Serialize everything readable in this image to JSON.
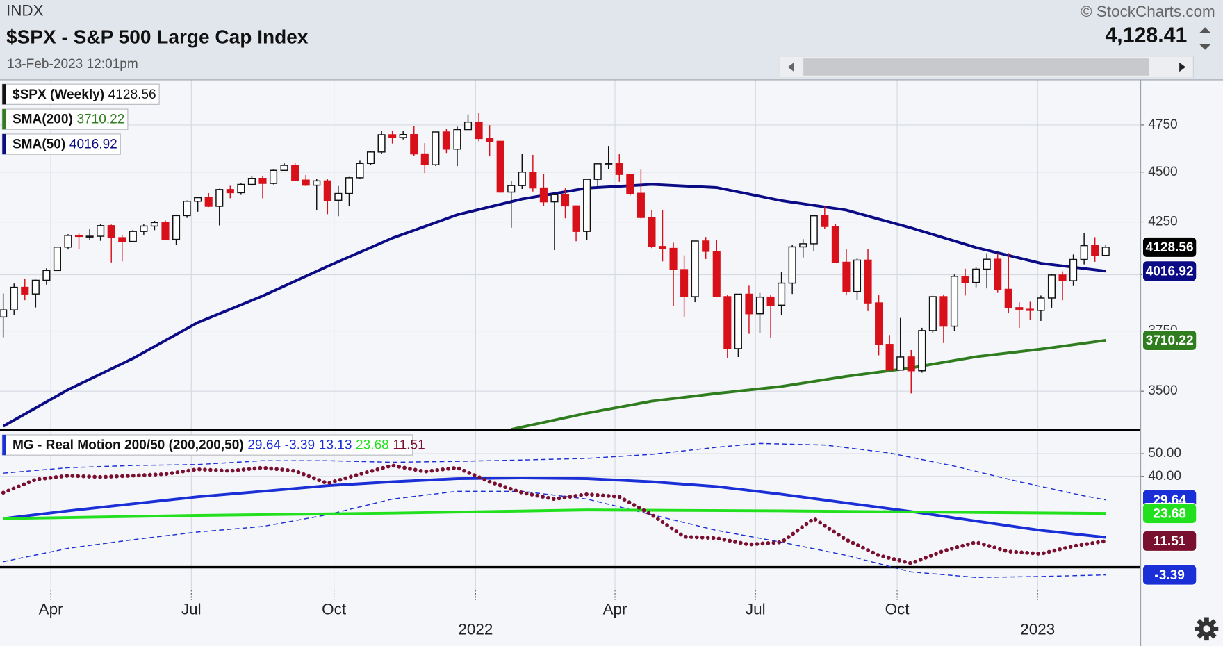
{
  "header": {
    "exchange": "INDX",
    "title": "$SPX - S&P 500 Large Cap Index",
    "timestamp": "13-Feb-2023 12:01pm",
    "copyright": "© StockCharts.com",
    "last_price": "4,128.41"
  },
  "chart_data": [
    {
      "type": "candlestick",
      "name": "$SPX (Weekly)",
      "open": [
        3811,
        3842,
        3943,
        3913,
        3975,
        4020,
        4129,
        4185,
        4181,
        4181,
        4232,
        4174,
        4156,
        4204,
        4230,
        4247,
        4166,
        4281,
        4352,
        4370,
        4327,
        4411,
        4395,
        4437,
        4468,
        4442,
        4509,
        4535,
        4459,
        4433,
        4455,
        4357,
        4391,
        4471,
        4545,
        4605,
        4697,
        4682,
        4698,
        4595,
        4538,
        4712,
        4620,
        4725,
        4766,
        4677,
        4662,
        4398,
        4431,
        4500,
        4419,
        4349,
        4385,
        4329,
        4204,
        4463,
        4543,
        4546,
        4488,
        4392,
        4272,
        4132,
        4123,
        4024,
        3901,
        4158,
        4109,
        3901,
        3675,
        3912,
        3825,
        3899,
        3863,
        3962,
        4130,
        4145,
        4280,
        4228,
        4058,
        3924,
        4068,
        3873,
        3693,
        3586,
        3640,
        3583,
        3752,
        3901,
        3771,
        3993,
        3965,
        4026,
        4072,
        3934,
        3852,
        3845,
        3840,
        3895,
        3999,
        3973,
        4071,
        4136,
        4090
      ],
      "high": [
        3915,
        3960,
        3983,
        3978,
        4030,
        4130,
        4191,
        4194,
        4218,
        4238,
        4237,
        4186,
        4212,
        4238,
        4255,
        4257,
        4286,
        4356,
        4372,
        4393,
        4415,
        4430,
        4442,
        4480,
        4478,
        4513,
        4545,
        4549,
        4485,
        4466,
        4465,
        4429,
        4475,
        4559,
        4608,
        4718,
        4719,
        4717,
        4744,
        4652,
        4713,
        4731,
        4741,
        4808,
        4818,
        4749,
        4664,
        4453,
        4595,
        4590,
        4490,
        4394,
        4417,
        4331,
        4465,
        4546,
        4637,
        4593,
        4492,
        4513,
        4308,
        4307,
        4150,
        4090,
        4158,
        4177,
        4164,
        3910,
        3913,
        3950,
        3918,
        3910,
        4012,
        4140,
        4167,
        4280,
        4325,
        4240,
        4119,
        4076,
        4119,
        3907,
        3733,
        3807,
        3669,
        3764,
        3905,
        3911,
        4001,
        4028,
        4034,
        4100,
        4100,
        4101,
        3876,
        3878,
        3906,
        4003,
        4016,
        4094,
        4195,
        4176,
        4141
      ],
      "low": [
        3723,
        3818,
        3885,
        3853,
        3955,
        4020,
        4118,
        4118,
        4164,
        4159,
        4057,
        4062,
        4152,
        4188,
        4210,
        4165,
        4140,
        4270,
        4300,
        4323,
        4233,
        4367,
        4384,
        4430,
        4367,
        4437,
        4508,
        4455,
        4428,
        4306,
        4288,
        4278,
        4329,
        4465,
        4537,
        4595,
        4650,
        4672,
        4585,
        4495,
        4532,
        4600,
        4531,
        4725,
        4662,
        4582,
        4395,
        4222,
        4414,
        4401,
        4327,
        4115,
        4268,
        4157,
        4162,
        4425,
        4517,
        4450,
        4381,
        4267,
        4124,
        4062,
        3859,
        3810,
        3876,
        4073,
        3900,
        3637,
        3640,
        3738,
        3742,
        3721,
        3818,
        3913,
        4080,
        4112,
        4218,
        4057,
        3907,
        3886,
        3837,
        3647,
        3585,
        3584,
        3491,
        3575,
        3743,
        3699,
        3750,
        3906,
        3943,
        3938,
        3918,
        3827,
        3764,
        3800,
        3794,
        3852,
        3885,
        3949,
        4048,
        4060,
        4090
      ],
      "close": [
        3842,
        3943,
        3913,
        3975,
        4020,
        4129,
        4185,
        4180,
        4181,
        4232,
        4174,
        4156,
        4204,
        4230,
        4247,
        4166,
        4281,
        4352,
        4370,
        4327,
        4411,
        4395,
        4437,
        4468,
        4442,
        4509,
        4535,
        4459,
        4433,
        4455,
        4357,
        4391,
        4471,
        4545,
        4605,
        4697,
        4682,
        4698,
        4595,
        4538,
        4712,
        4620,
        4725,
        4766,
        4677,
        4662,
        4398,
        4431,
        4500,
        4419,
        4349,
        4385,
        4329,
        4204,
        4463,
        4543,
        4546,
        4488,
        4392,
        4272,
        4132,
        4123,
        4024,
        3901,
        4158,
        4109,
        3901,
        3675,
        3912,
        3825,
        3899,
        3863,
        3962,
        4130,
        4145,
        4280,
        4228,
        4058,
        3924,
        4068,
        3873,
        3693,
        3586,
        3640,
        3583,
        3752,
        3901,
        3771,
        3993,
        3965,
        4026,
        4072,
        3934,
        3852,
        3845,
        3840,
        3895,
        3999,
        3973,
        4071,
        4136,
        4090,
        4128.56
      ],
      "up_color": "#111111",
      "down_color": "#d8101a",
      "series": [
        {
          "name": "SMA(200)",
          "color": "#2f7d1f",
          "x": [
            47,
            54,
            60,
            66,
            72,
            78,
            84,
            90,
            96,
            102
          ],
          "values": [
            3350,
            3413,
            3460,
            3491,
            3519,
            3560,
            3595,
            3641,
            3673,
            3710.22
          ]
        },
        {
          "name": "SMA(50)",
          "color": "#0b0b86",
          "x": [
            0,
            6,
            12,
            18,
            24,
            30,
            36,
            42,
            48,
            54,
            60,
            66,
            72,
            78,
            84,
            90,
            96,
            102
          ],
          "values": [
            3362,
            3506,
            3634,
            3787,
            3904,
            4039,
            4172,
            4285,
            4363,
            4418,
            4437,
            4421,
            4355,
            4308,
            4221,
            4127,
            4053,
            4016.92
          ]
        }
      ],
      "xlim": [
        -0.3,
        105.2
      ],
      "ylim": [
        3350,
        5000
      ],
      "yticks": [
        3500,
        3750,
        4000,
        4250,
        4500,
        4750
      ],
      "log_scale": true,
      "grid": true
    },
    {
      "type": "line",
      "title": "MG - Real Motion 200/50 (200,200,50)",
      "series": [
        {
          "color": "#1b2fd6",
          "line_style": "dashed",
          "price_label": true,
          "x": [
            0,
            6,
            12,
            18,
            24,
            30,
            36,
            42,
            48,
            54,
            60,
            66,
            70,
            76,
            82,
            88,
            94,
            100,
            102
          ],
          "values": [
            41.4,
            43.8,
            44.8,
            45.2,
            46.9,
            46.9,
            46.2,
            46.6,
            47.2,
            47.9,
            49.7,
            52.8,
            54.5,
            53.8,
            50.3,
            44.5,
            37.6,
            31.4,
            29.64
          ]
        },
        {
          "color": "#1b2fd6",
          "line_style": "dashed",
          "price_label": true,
          "x": [
            0,
            6,
            12,
            18,
            24,
            30,
            36,
            42,
            48,
            54,
            60,
            66,
            72,
            78,
            84,
            90,
            96,
            102
          ],
          "values": [
            2.4,
            8.3,
            12.1,
            15.5,
            17.9,
            23.1,
            30.0,
            33.4,
            33.4,
            30.0,
            23.1,
            16.2,
            11.0,
            5.2,
            -2.1,
            -4.5,
            -4.1,
            -3.39
          ]
        },
        {
          "color": "#1b2fd6",
          "line_style": "solid",
          "price_label": false,
          "x": [
            0,
            6,
            12,
            18,
            24,
            30,
            36,
            42,
            48,
            54,
            60,
            66,
            72,
            78,
            84,
            90,
            96,
            102
          ],
          "values": [
            21.4,
            24.8,
            27.9,
            31.0,
            33.4,
            35.9,
            37.6,
            39.0,
            39.3,
            39.0,
            37.6,
            35.5,
            32.1,
            28.3,
            24.5,
            20.3,
            16.2,
            13.13
          ]
        },
        {
          "color": "#22e01e",
          "line_style": "solid",
          "price_label": true,
          "x": [
            0,
            18,
            36,
            54,
            72,
            90,
            102
          ],
          "values": [
            21.4,
            22.8,
            23.8,
            25.2,
            24.8,
            24.1,
            23.68
          ]
        },
        {
          "color": "#7a1030",
          "line_style": "dotted",
          "price_label": true,
          "x": [
            0,
            3,
            6,
            9,
            12,
            15,
            18,
            21,
            24,
            27,
            30,
            33,
            36,
            39,
            42,
            45,
            48,
            51,
            54,
            57,
            60,
            63,
            66,
            69,
            72,
            75,
            78,
            81,
            84,
            87,
            90,
            93,
            96,
            99,
            102
          ],
          "values": [
            32.8,
            38.6,
            40.3,
            39.7,
            40.3,
            41.0,
            43.1,
            42.4,
            43.8,
            42.4,
            36.9,
            41.0,
            44.8,
            42.1,
            43.8,
            37.6,
            32.8,
            30.0,
            32.1,
            31.0,
            23.1,
            13.4,
            12.8,
            10.0,
            11.0,
            21.4,
            12.1,
            5.2,
            1.7,
            7.2,
            11.0,
            6.9,
            5.9,
            9.3,
            11.51
          ]
        }
      ],
      "xlim": [
        -0.3,
        105.2
      ],
      "xticks": [
        {
          "value": 4.4,
          "label": "Apr"
        },
        {
          "value": 17.4,
          "label": "Jul"
        },
        {
          "value": 30.6,
          "label": "Oct"
        },
        {
          "value": 43.7,
          "label": "2022"
        },
        {
          "value": 56.6,
          "label": "Apr"
        },
        {
          "value": 69.6,
          "label": "Jul"
        },
        {
          "value": 82.7,
          "label": "Oct"
        },
        {
          "value": 95.7,
          "label": "2023"
        }
      ],
      "ylim": [
        -10,
        60
      ],
      "yticks": [
        {
          "value": 40,
          "label": "40.00"
        },
        {
          "value": 50,
          "label": "50.00"
        }
      ],
      "zero_line": true,
      "grid": true
    }
  ]
}
